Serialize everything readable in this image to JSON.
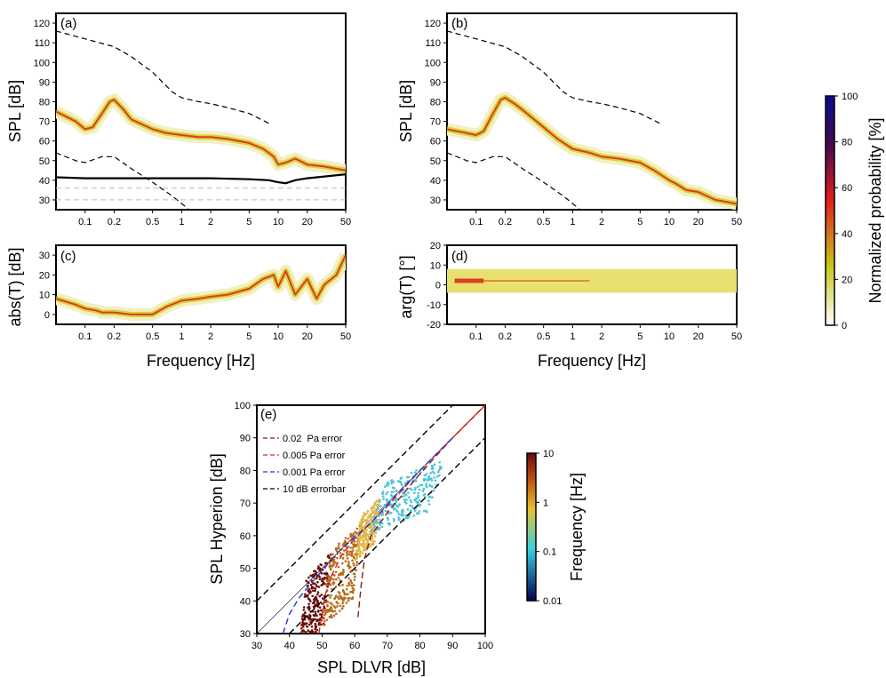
{
  "chart_data": [
    {
      "id": "a",
      "panel_label": "(a)",
      "type": "heatmap",
      "xscale": "log",
      "xlim": [
        0.05,
        50
      ],
      "ylim": [
        25,
        125
      ],
      "xticks": [
        0.1,
        0.2,
        0.5,
        1,
        2,
        5,
        10,
        20,
        50
      ],
      "xtick_labels": [
        "0.1",
        "0.2",
        "0.5",
        "1",
        "2",
        "5",
        "10",
        "20",
        "50"
      ],
      "yticks": [
        30,
        40,
        50,
        60,
        70,
        80,
        90,
        100,
        110,
        120
      ],
      "ylabel": "SPL [dB]",
      "xlabel": "",
      "series": [
        {
          "style": "dashed-upper",
          "x": [
            0.05,
            0.1,
            0.2,
            0.3,
            0.5,
            0.8,
            1,
            1.5,
            2,
            3,
            5,
            8
          ],
          "y": [
            116,
            112,
            108,
            103,
            95,
            85,
            82,
            80,
            79,
            77,
            74,
            69
          ]
        },
        {
          "style": "dashed-lower",
          "x": [
            0.05,
            0.08,
            0.1,
            0.15,
            0.2,
            0.3,
            0.5,
            0.8,
            1.2
          ],
          "y": [
            54,
            50,
            49,
            52,
            52,
            46,
            39,
            32,
            25
          ]
        },
        {
          "style": "heat-band",
          "x": [
            0.05,
            0.08,
            0.1,
            0.12,
            0.15,
            0.18,
            0.2,
            0.25,
            0.3,
            0.5,
            0.7,
            1,
            1.5,
            2,
            3,
            5,
            7,
            9,
            10,
            12,
            15,
            20,
            30,
            50
          ],
          "y": [
            75,
            70,
            66,
            67,
            74,
            80,
            81,
            76,
            71,
            66,
            64,
            63,
            62,
            62,
            61,
            59,
            56,
            52,
            48,
            49,
            51,
            48,
            47,
            45
          ]
        },
        {
          "style": "noise-floor",
          "x": [
            0.05,
            0.1,
            0.5,
            1,
            2,
            5,
            8,
            10,
            12,
            15,
            20,
            50
          ],
          "y": [
            41.5,
            41,
            41,
            41,
            41,
            40.5,
            40,
            39,
            38.5,
            40,
            41,
            43
          ]
        },
        {
          "style": "gray-dashed",
          "x": [
            0.05,
            50
          ],
          "y": [
            36,
            36
          ]
        },
        {
          "style": "gray-dashed",
          "x": [
            0.05,
            50
          ],
          "y": [
            30,
            30
          ]
        }
      ]
    },
    {
      "id": "b",
      "panel_label": "(b)",
      "type": "heatmap",
      "xscale": "log",
      "xlim": [
        0.05,
        50
      ],
      "ylim": [
        25,
        125
      ],
      "xticks": [
        0.1,
        0.2,
        0.5,
        1,
        2,
        5,
        10,
        20,
        50
      ],
      "xtick_labels": [
        "0.1",
        "0.2",
        "0.5",
        "1",
        "2",
        "5",
        "10",
        "20",
        "50"
      ],
      "yticks": [
        30,
        40,
        50,
        60,
        70,
        80,
        90,
        100,
        110,
        120
      ],
      "ylabel": "SPL [dB]",
      "xlabel": "",
      "series": [
        {
          "style": "dashed-upper",
          "x": [
            0.05,
            0.1,
            0.2,
            0.3,
            0.5,
            0.8,
            1,
            1.5,
            2,
            3,
            5,
            8
          ],
          "y": [
            116,
            112,
            108,
            103,
            95,
            85,
            82,
            80,
            79,
            77,
            74,
            69
          ]
        },
        {
          "style": "dashed-lower",
          "x": [
            0.05,
            0.08,
            0.1,
            0.15,
            0.2,
            0.3,
            0.5,
            0.8,
            1.2
          ],
          "y": [
            54,
            50,
            49,
            52,
            52,
            46,
            39,
            32,
            25
          ]
        },
        {
          "style": "heat-band",
          "x": [
            0.05,
            0.08,
            0.1,
            0.12,
            0.15,
            0.18,
            0.2,
            0.25,
            0.3,
            0.5,
            0.7,
            1,
            1.5,
            2,
            3,
            5,
            7,
            10,
            12,
            15,
            20,
            30,
            50
          ],
          "y": [
            66,
            64,
            63,
            65,
            74,
            81,
            82,
            79,
            76,
            67,
            61,
            56,
            54,
            52,
            51,
            49,
            45,
            40,
            38,
            35,
            34,
            30,
            28
          ]
        }
      ]
    },
    {
      "id": "c",
      "panel_label": "(c)",
      "type": "heatmap",
      "xscale": "log",
      "xlim": [
        0.05,
        50
      ],
      "ylim": [
        -5,
        35
      ],
      "xticks": [
        0.1,
        0.2,
        0.5,
        1,
        2,
        5,
        10,
        20,
        50
      ],
      "xtick_labels": [
        "0.1",
        "0.2",
        "0.5",
        "1",
        "2",
        "5",
        "10",
        "20",
        "50"
      ],
      "yticks": [
        0,
        10,
        20,
        30
      ],
      "ylabel": "abs(T) [dB]",
      "xlabel": "Frequency [Hz]",
      "series": [
        {
          "style": "heat-band",
          "x": [
            0.05,
            0.08,
            0.1,
            0.13,
            0.15,
            0.2,
            0.3,
            0.5,
            0.7,
            1,
            1.5,
            2,
            3,
            5,
            7,
            9,
            10,
            12,
            15,
            20,
            25,
            30,
            40,
            50
          ],
          "y": [
            8,
            5,
            3,
            2,
            1,
            1,
            0,
            0,
            4,
            7,
            8,
            9,
            10,
            13,
            18,
            20,
            14,
            22,
            10,
            18,
            8,
            15,
            20,
            30
          ]
        }
      ]
    },
    {
      "id": "d",
      "panel_label": "(d)",
      "type": "heatmap",
      "xscale": "log",
      "xlim": [
        0.05,
        50
      ],
      "ylim": [
        -20,
        20
      ],
      "xticks": [
        0.1,
        0.2,
        0.5,
        1,
        2,
        5,
        10,
        20,
        50
      ],
      "xtick_labels": [
        "0.1",
        "0.2",
        "0.5",
        "1",
        "2",
        "5",
        "10",
        "20",
        "50"
      ],
      "yticks": [
        -20,
        -10,
        0,
        10,
        20
      ],
      "ylabel": "arg(T) [°]",
      "xlabel": "Frequency [Hz]",
      "series": [
        {
          "style": "heat-flat",
          "x": [
            0.05,
            50
          ],
          "y": [
            2,
            2
          ],
          "band_halfwidth": 6
        }
      ]
    },
    {
      "id": "e",
      "panel_label": "(e)",
      "type": "scatter",
      "xlim": [
        30,
        100
      ],
      "ylim": [
        30,
        100
      ],
      "xticks": [
        30,
        40,
        50,
        60,
        70,
        80,
        90,
        100
      ],
      "yticks": [
        30,
        40,
        50,
        60,
        70,
        80,
        90,
        100
      ],
      "xlabel": "SPL DLVR [dB]",
      "ylabel": "SPL Hyperion [dB]",
      "legend_position": "top-left",
      "series": [
        {
          "name": "0.02  Pa error",
          "color": "#8b1a1a",
          "x": [
            61,
            62,
            63,
            65,
            70,
            80,
            90,
            100
          ],
          "y": [
            35,
            45,
            53,
            60,
            67,
            79,
            90,
            100
          ]
        },
        {
          "name": "0.005 Pa error",
          "color": "#e02020",
          "x": [
            49,
            51,
            53,
            56,
            60,
            70,
            80,
            90,
            100
          ],
          "y": [
            30,
            42,
            48,
            54,
            59,
            69,
            80,
            90,
            100
          ]
        },
        {
          "name": "0.001 Pa error",
          "color": "#1a3adb",
          "x": [
            38,
            40,
            43,
            48,
            55,
            65,
            75,
            85,
            90
          ],
          "y": [
            30,
            36,
            41,
            47,
            55,
            64,
            75,
            85,
            90
          ]
        },
        {
          "name": "10 dB errorbar",
          "color": "#000000",
          "x": [
            30,
            90
          ],
          "y": [
            40,
            100
          ],
          "x2": [
            40,
            100
          ],
          "y2": [
            30,
            90
          ]
        }
      ],
      "clouds": [
        {
          "color": "#6b0d0d",
          "cx": 48,
          "cy": 40,
          "w": 8,
          "h": 22
        },
        {
          "color": "#b86b1a",
          "cx": 56,
          "cy": 48,
          "w": 10,
          "h": 24
        },
        {
          "color": "#e0b84a",
          "cx": 64,
          "cy": 62,
          "w": 6,
          "h": 14
        },
        {
          "color": "#4dc4d4",
          "cx": 76,
          "cy": 72,
          "w": 18,
          "h": 16
        }
      ]
    }
  ],
  "colorbars": [
    {
      "id": "probability",
      "label": "Normalized probability [%]",
      "ticks": [
        "0",
        "20",
        "40",
        "60",
        "80",
        "100"
      ],
      "stops": [
        "#ffffff",
        "#c8c81e",
        "#e01e1e",
        "#4b0a4b",
        "#0a0a96"
      ]
    },
    {
      "id": "frequency",
      "label": "Frequency [Hz]",
      "ticks": [
        "0.01",
        "0.1",
        "1",
        "10"
      ],
      "stops": [
        "#000050",
        "#3ad0e0",
        "#e8c030",
        "#c05010",
        "#6a0a0a"
      ]
    }
  ]
}
